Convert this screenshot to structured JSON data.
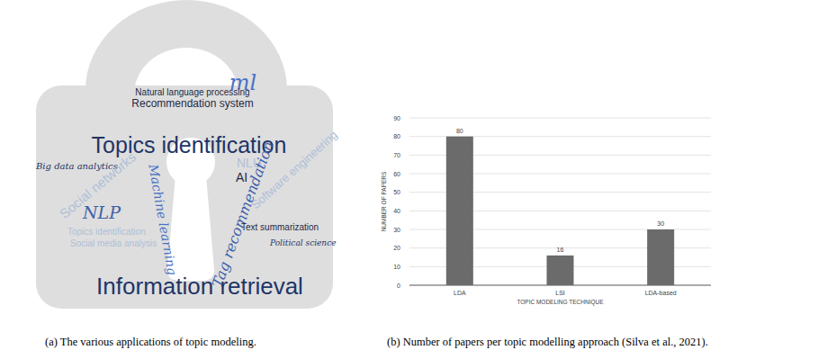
{
  "word_cloud": {
    "words": [
      "ml",
      "Natural language processing",
      "Recommendation system",
      "Topics identification",
      "Big data analytics",
      "Social networks",
      "NLU",
      "AI",
      "Tag recommendation",
      "Software engineering",
      "NLP",
      "Machine learning",
      "Text summarization",
      "Topics identification",
      "Political science",
      "Social media analysis",
      "Information retrieval"
    ],
    "caption": "(a) The various applications of topic modeling."
  },
  "chart_data": {
    "type": "bar",
    "categories": [
      "LDA",
      "LSI",
      "LDA-based"
    ],
    "values": [
      80,
      16,
      30
    ],
    "color": "#6b6b6b",
    "ylim": [
      0,
      90
    ],
    "yticks": [
      0,
      10,
      20,
      30,
      40,
      50,
      60,
      70,
      80,
      90
    ],
    "grid": true,
    "data_labels": true,
    "x_label": "TOPIC MODELING TECHNIQUE",
    "y_label": "NUMBER OF PAPERS",
    "caption": "(b) Number of papers per topic modelling approach (Silva et al., 2021)."
  }
}
